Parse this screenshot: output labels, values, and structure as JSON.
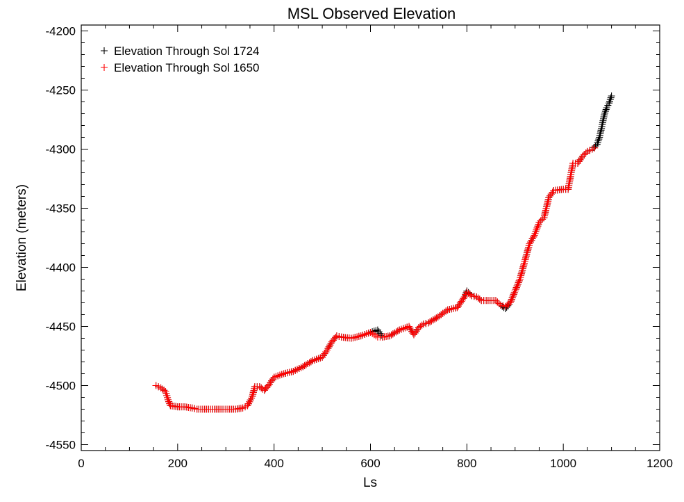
{
  "chart_data": {
    "type": "scatter",
    "title": "MSL Observed Elevation",
    "xlabel": "Ls",
    "ylabel": "Elevation (meters)",
    "xlim": [
      0,
      1200
    ],
    "ylim": [
      -4555,
      -4195
    ],
    "xticks": [
      0,
      200,
      400,
      600,
      800,
      1000,
      1200
    ],
    "yticks": [
      -4550,
      -4500,
      -4450,
      -4400,
      -4350,
      -4300,
      -4250,
      -4200
    ],
    "grid": false,
    "legend": "top-left",
    "marker": "+",
    "series": [
      {
        "name": "Elevation Through Sol 1724",
        "color": "#000000",
        "x": [
          155,
          165,
          175,
          180,
          185,
          200,
          215,
          230,
          240,
          260,
          280,
          300,
          320,
          335,
          345,
          355,
          360,
          370,
          380,
          390,
          400,
          420,
          440,
          460,
          480,
          500,
          510,
          520,
          530,
          540,
          560,
          580,
          600,
          615,
          625,
          640,
          660,
          680,
          690,
          700,
          710,
          720,
          740,
          760,
          780,
          795,
          800,
          810,
          820,
          830,
          840,
          860,
          870,
          880,
          890,
          900,
          910,
          920,
          930,
          940,
          950,
          960,
          970,
          980,
          1000,
          1010,
          1015,
          1020,
          1030,
          1040,
          1050,
          1060,
          1070,
          1075,
          1080,
          1085,
          1090,
          1095,
          1100
        ],
        "y": [
          -4500,
          -4502,
          -4505,
          -4512,
          -4517,
          -4518,
          -4518,
          -4519,
          -4520,
          -4520,
          -4520,
          -4520,
          -4520,
          -4519,
          -4517,
          -4509,
          -4501,
          -4501,
          -4504,
          -4499,
          -4493,
          -4490,
          -4488,
          -4484,
          -4479,
          -4476,
          -4470,
          -4463,
          -4458,
          -4459,
          -4460,
          -4458,
          -4455,
          -4453,
          -4459,
          -4458,
          -4453,
          -4450,
          -4457,
          -4451,
          -4448,
          -4447,
          -4442,
          -4436,
          -4434,
          -4425,
          -4420,
          -4424,
          -4425,
          -4428,
          -4428,
          -4428,
          -4432,
          -4435,
          -4430,
          -4420,
          -4410,
          -4395,
          -4380,
          -4373,
          -4362,
          -4358,
          -4341,
          -4335,
          -4334,
          -4334,
          -4323,
          -4312,
          -4312,
          -4306,
          -4302,
          -4300,
          -4296,
          -4290,
          -4281,
          -4271,
          -4265,
          -4261,
          -4255
        ]
      },
      {
        "name": "Elevation Through Sol 1650",
        "color": "#ff0000",
        "x": [
          155,
          165,
          175,
          180,
          185,
          200,
          215,
          230,
          240,
          260,
          280,
          300,
          320,
          335,
          345,
          355,
          360,
          370,
          380,
          390,
          400,
          420,
          440,
          460,
          480,
          500,
          510,
          520,
          530,
          540,
          560,
          580,
          600,
          615,
          625,
          640,
          660,
          680,
          690,
          700,
          710,
          720,
          740,
          760,
          780,
          795,
          800,
          810,
          820,
          830,
          840,
          860,
          870,
          880,
          890,
          900,
          910,
          920,
          930,
          940,
          950,
          960,
          970,
          980,
          1000,
          1010,
          1015,
          1020,
          1030,
          1040,
          1050,
          1060,
          1065
        ],
        "y": [
          -4500,
          -4502,
          -4505,
          -4512,
          -4517,
          -4518,
          -4518,
          -4519,
          -4520,
          -4520,
          -4520,
          -4520,
          -4520,
          -4519,
          -4517,
          -4509,
          -4501,
          -4501,
          -4504,
          -4499,
          -4493,
          -4490,
          -4488,
          -4484,
          -4479,
          -4476,
          -4470,
          -4463,
          -4458,
          -4459,
          -4460,
          -4458,
          -4455,
          -4459,
          -4459,
          -4458,
          -4453,
          -4450,
          -4457,
          -4451,
          -4448,
          -4447,
          -4442,
          -4436,
          -4434,
          -4425,
          -4421,
          -4424,
          -4425,
          -4428,
          -4428,
          -4428,
          -4432,
          -4433,
          -4430,
          -4420,
          -4410,
          -4395,
          -4380,
          -4373,
          -4362,
          -4358,
          -4341,
          -4335,
          -4334,
          -4334,
          -4323,
          -4312,
          -4312,
          -4306,
          -4302,
          -4300,
          -4299
        ]
      }
    ]
  }
}
